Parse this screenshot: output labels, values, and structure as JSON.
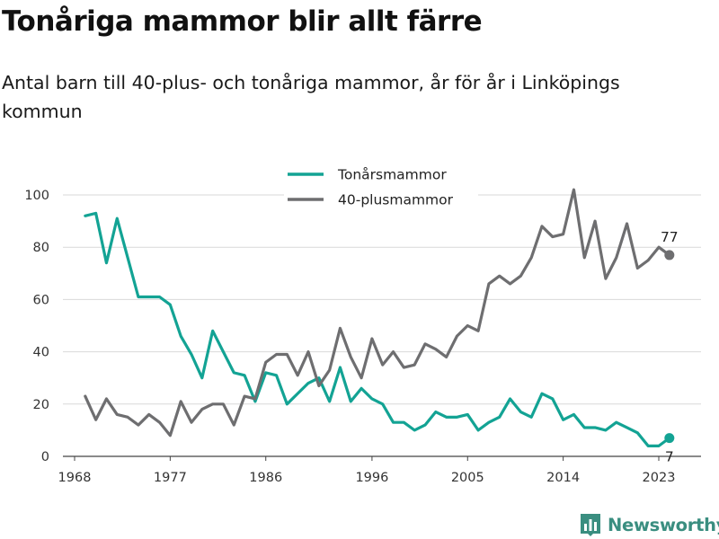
{
  "title": "Tonåriga mammor blir allt färre",
  "subtitle": "Antal barn till 40-plus- och tonåriga mammor, år för år i Linköpings kommun",
  "brand": {
    "name": "Newsworthy",
    "color": "#3a8e80",
    "icon": "bar-chart-logo-icon"
  },
  "chart_data": {
    "type": "line",
    "x": [
      1969,
      1970,
      1971,
      1972,
      1973,
      1974,
      1975,
      1976,
      1977,
      1978,
      1979,
      1980,
      1981,
      1982,
      1983,
      1984,
      1985,
      1986,
      1987,
      1988,
      1989,
      1990,
      1991,
      1992,
      1993,
      1994,
      1995,
      1996,
      1997,
      1998,
      1999,
      2000,
      2001,
      2002,
      2003,
      2004,
      2005,
      2006,
      2007,
      2008,
      2009,
      2010,
      2011,
      2012,
      2013,
      2014,
      2015,
      2016,
      2017,
      2018,
      2019,
      2020,
      2021,
      2022,
      2023,
      2024
    ],
    "series": [
      {
        "name": "Tonårsmammor",
        "color": "#13a394",
        "values": [
          92,
          93,
          74,
          91,
          76,
          61,
          61,
          61,
          58,
          46,
          39,
          30,
          48,
          40,
          32,
          31,
          21,
          32,
          31,
          20,
          24,
          28,
          30,
          21,
          34,
          21,
          26,
          22,
          20,
          13,
          13,
          10,
          12,
          17,
          15,
          15,
          16,
          10,
          13,
          15,
          22,
          17,
          15,
          24,
          22,
          14,
          16,
          11,
          11,
          10,
          13,
          11,
          9,
          4,
          4,
          7
        ],
        "end_label": "7"
      },
      {
        "name": "40-plusmammor",
        "color": "#6e6e70",
        "values": [
          23,
          14,
          22,
          16,
          15,
          12,
          16,
          13,
          8,
          21,
          13,
          18,
          20,
          20,
          12,
          23,
          22,
          36,
          39,
          39,
          31,
          40,
          27,
          33,
          49,
          38,
          30,
          45,
          35,
          40,
          34,
          35,
          43,
          41,
          38,
          46,
          50,
          48,
          66,
          69,
          66,
          69,
          76,
          88,
          84,
          85,
          102,
          76,
          90,
          68,
          76,
          89,
          72,
          75,
          80,
          77
        ],
        "end_label": "77"
      }
    ],
    "xticks": [
      1968,
      1977,
      1986,
      1996,
      2005,
      2014,
      2023
    ],
    "yticks": [
      0,
      20,
      40,
      60,
      80,
      100
    ],
    "xlim": [
      1968,
      2025
    ],
    "ylim": [
      0,
      105
    ],
    "grid": true,
    "legend": "top-center"
  }
}
